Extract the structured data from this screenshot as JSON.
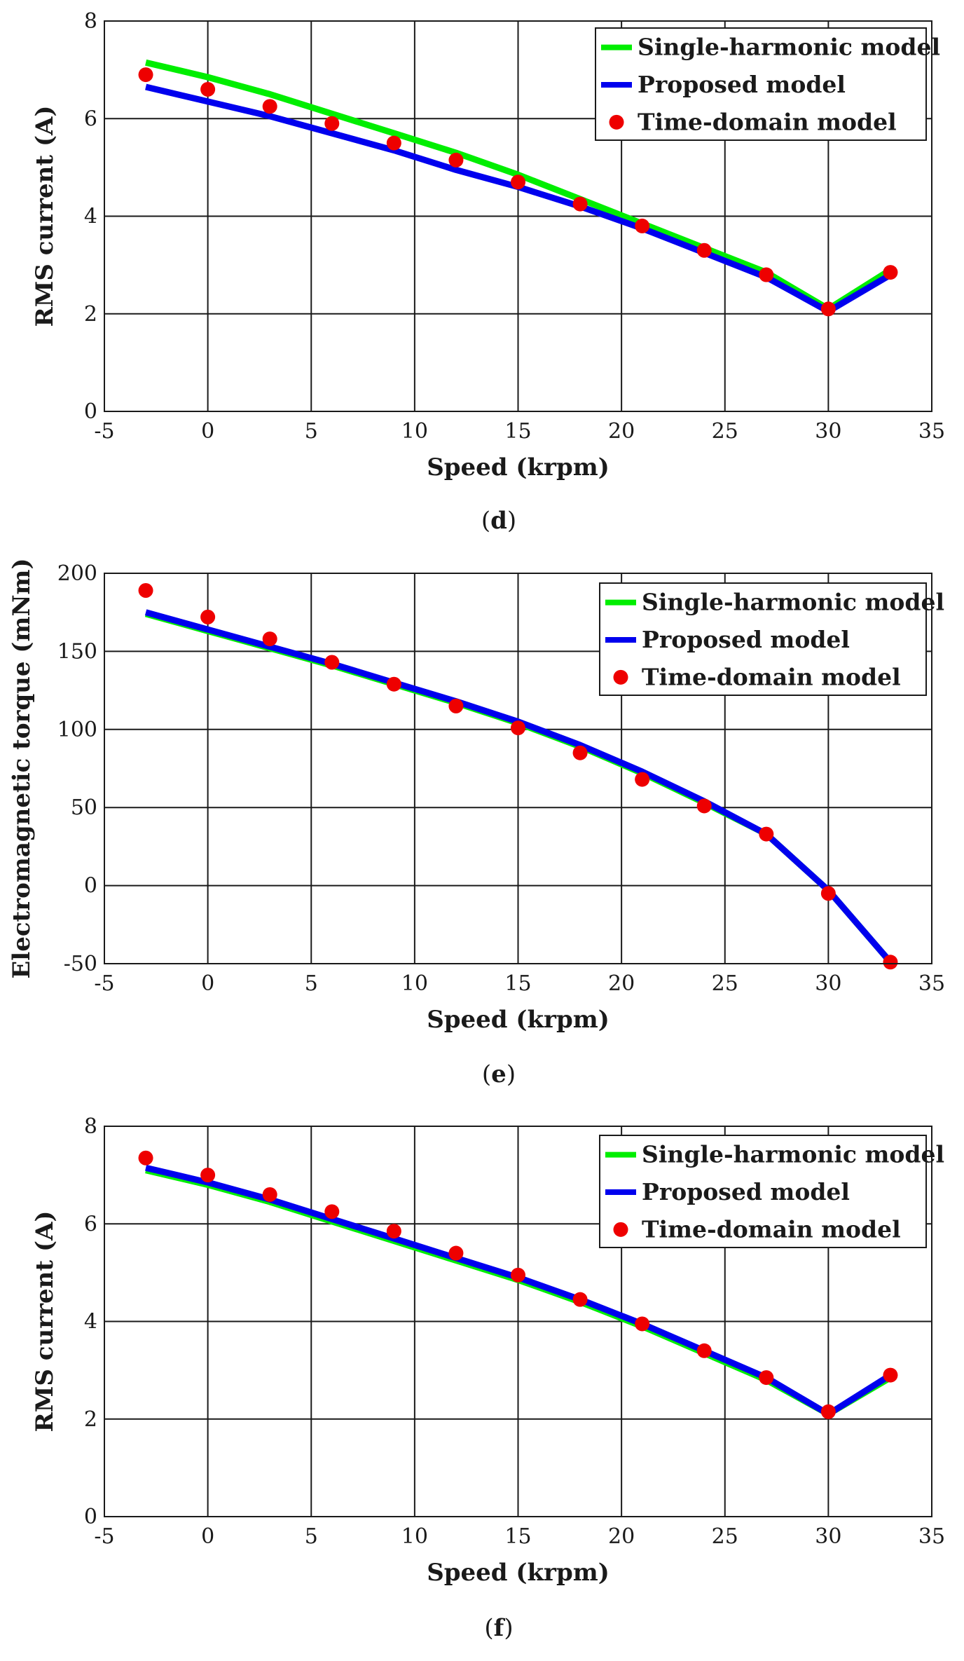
{
  "figure_captions": [
    {
      "open": "(",
      "letter": "d",
      "close": ")"
    },
    {
      "open": "(",
      "letter": "e",
      "close": ")"
    },
    {
      "open": "(",
      "letter": "f",
      "close": ")"
    }
  ],
  "colors": {
    "single_harmonic": "#00ee00",
    "proposed": "#0000ee",
    "time_domain": "#ee0000",
    "grid": "#1a1a1a"
  },
  "chart_data": [
    {
      "type": "line",
      "panel": "d",
      "xlabel": "Speed (krpm)",
      "ylabel": "RMS current (A)",
      "xlim": [
        -5,
        35
      ],
      "ylim": [
        0,
        8
      ],
      "xticks": [
        -5,
        0,
        5,
        10,
        15,
        20,
        25,
        30,
        35
      ],
      "yticks": [
        0,
        2,
        4,
        6,
        8
      ],
      "grid": true,
      "legend_position": "top-right",
      "series": [
        {
          "name": "Single-harmonic model",
          "style": "line",
          "color": "#00ee00",
          "x": [
            -3,
            0,
            3,
            6,
            9,
            12,
            15,
            18,
            21,
            24,
            27,
            30,
            33
          ],
          "y": [
            7.15,
            6.85,
            6.5,
            6.1,
            5.7,
            5.3,
            4.85,
            4.35,
            3.85,
            3.35,
            2.85,
            2.1,
            2.9
          ]
        },
        {
          "name": "Proposed model",
          "style": "line",
          "color": "#0000ee",
          "x": [
            -3,
            0,
            3,
            6,
            9,
            12,
            15,
            18,
            21,
            24,
            27,
            30,
            33
          ],
          "y": [
            6.65,
            6.35,
            6.05,
            5.7,
            5.35,
            4.95,
            4.6,
            4.2,
            3.75,
            3.25,
            2.75,
            2.05,
            2.8
          ]
        },
        {
          "name": "Time-domain model",
          "style": "scatter",
          "color": "#ee0000",
          "x": [
            -3,
            0,
            3,
            6,
            9,
            12,
            15,
            18,
            21,
            24,
            27,
            30,
            33
          ],
          "y": [
            6.9,
            6.6,
            6.25,
            5.9,
            5.5,
            5.15,
            4.7,
            4.25,
            3.8,
            3.3,
            2.8,
            2.1,
            2.85
          ]
        }
      ]
    },
    {
      "type": "line",
      "panel": "e",
      "xlabel": "Speed (krpm)",
      "ylabel": "Electromagnetic torque (mNm)",
      "xlim": [
        -5,
        35
      ],
      "ylim": [
        -50,
        200
      ],
      "xticks": [
        -5,
        0,
        5,
        10,
        15,
        20,
        25,
        30,
        35
      ],
      "yticks": [
        -50,
        0,
        50,
        100,
        150,
        200
      ],
      "grid": true,
      "legend_position": "top-right",
      "series": [
        {
          "name": "Single-harmonic model",
          "style": "line",
          "color": "#00ee00",
          "x": [
            -3,
            0,
            3,
            6,
            9,
            12,
            15,
            18,
            21,
            24,
            27,
            30,
            33
          ],
          "y": [
            174,
            163,
            152,
            141,
            129,
            117,
            104,
            89,
            72,
            53,
            33,
            -3,
            -49
          ]
        },
        {
          "name": "Proposed model",
          "style": "line",
          "color": "#0000ee",
          "x": [
            -3,
            0,
            3,
            6,
            9,
            12,
            15,
            18,
            21,
            24,
            27,
            30,
            33
          ],
          "y": [
            175,
            164,
            153,
            142,
            130,
            118,
            105,
            90,
            73,
            54,
            33,
            -3,
            -49
          ]
        },
        {
          "name": "Time-domain model",
          "style": "scatter",
          "color": "#ee0000",
          "x": [
            -3,
            0,
            3,
            6,
            9,
            12,
            15,
            18,
            21,
            24,
            27,
            30,
            33
          ],
          "y": [
            189,
            172,
            158,
            143,
            129,
            115,
            101,
            85,
            68,
            51,
            33,
            -5,
            -49
          ]
        }
      ]
    },
    {
      "type": "line",
      "panel": "f",
      "xlabel": "Speed (krpm)",
      "ylabel": "RMS current (A)",
      "xlim": [
        -5,
        35
      ],
      "ylim": [
        0,
        8
      ],
      "xticks": [
        -5,
        0,
        5,
        10,
        15,
        20,
        25,
        30,
        35
      ],
      "yticks": [
        0,
        2,
        4,
        6,
        8
      ],
      "grid": true,
      "legend_position": "top-right",
      "series": [
        {
          "name": "Single-harmonic model",
          "style": "line",
          "color": "#00ee00",
          "x": [
            -3,
            0,
            3,
            6,
            9,
            12,
            15,
            18,
            21,
            24,
            27,
            30,
            33
          ],
          "y": [
            7.1,
            6.8,
            6.45,
            6.05,
            5.65,
            5.25,
            4.85,
            4.4,
            3.9,
            3.35,
            2.8,
            2.1,
            2.85
          ]
        },
        {
          "name": "Proposed model",
          "style": "line",
          "color": "#0000ee",
          "x": [
            -3,
            0,
            3,
            6,
            9,
            12,
            15,
            18,
            21,
            24,
            27,
            30,
            33
          ],
          "y": [
            7.15,
            6.85,
            6.5,
            6.1,
            5.7,
            5.3,
            4.9,
            4.45,
            3.95,
            3.4,
            2.85,
            2.1,
            2.9
          ]
        },
        {
          "name": "Time-domain model",
          "style": "scatter",
          "color": "#ee0000",
          "x": [
            -3,
            0,
            3,
            6,
            9,
            12,
            15,
            18,
            21,
            24,
            27,
            30,
            33
          ],
          "y": [
            7.35,
            7.0,
            6.6,
            6.25,
            5.85,
            5.4,
            4.95,
            4.45,
            3.95,
            3.4,
            2.85,
            2.15,
            2.9
          ]
        }
      ]
    }
  ]
}
